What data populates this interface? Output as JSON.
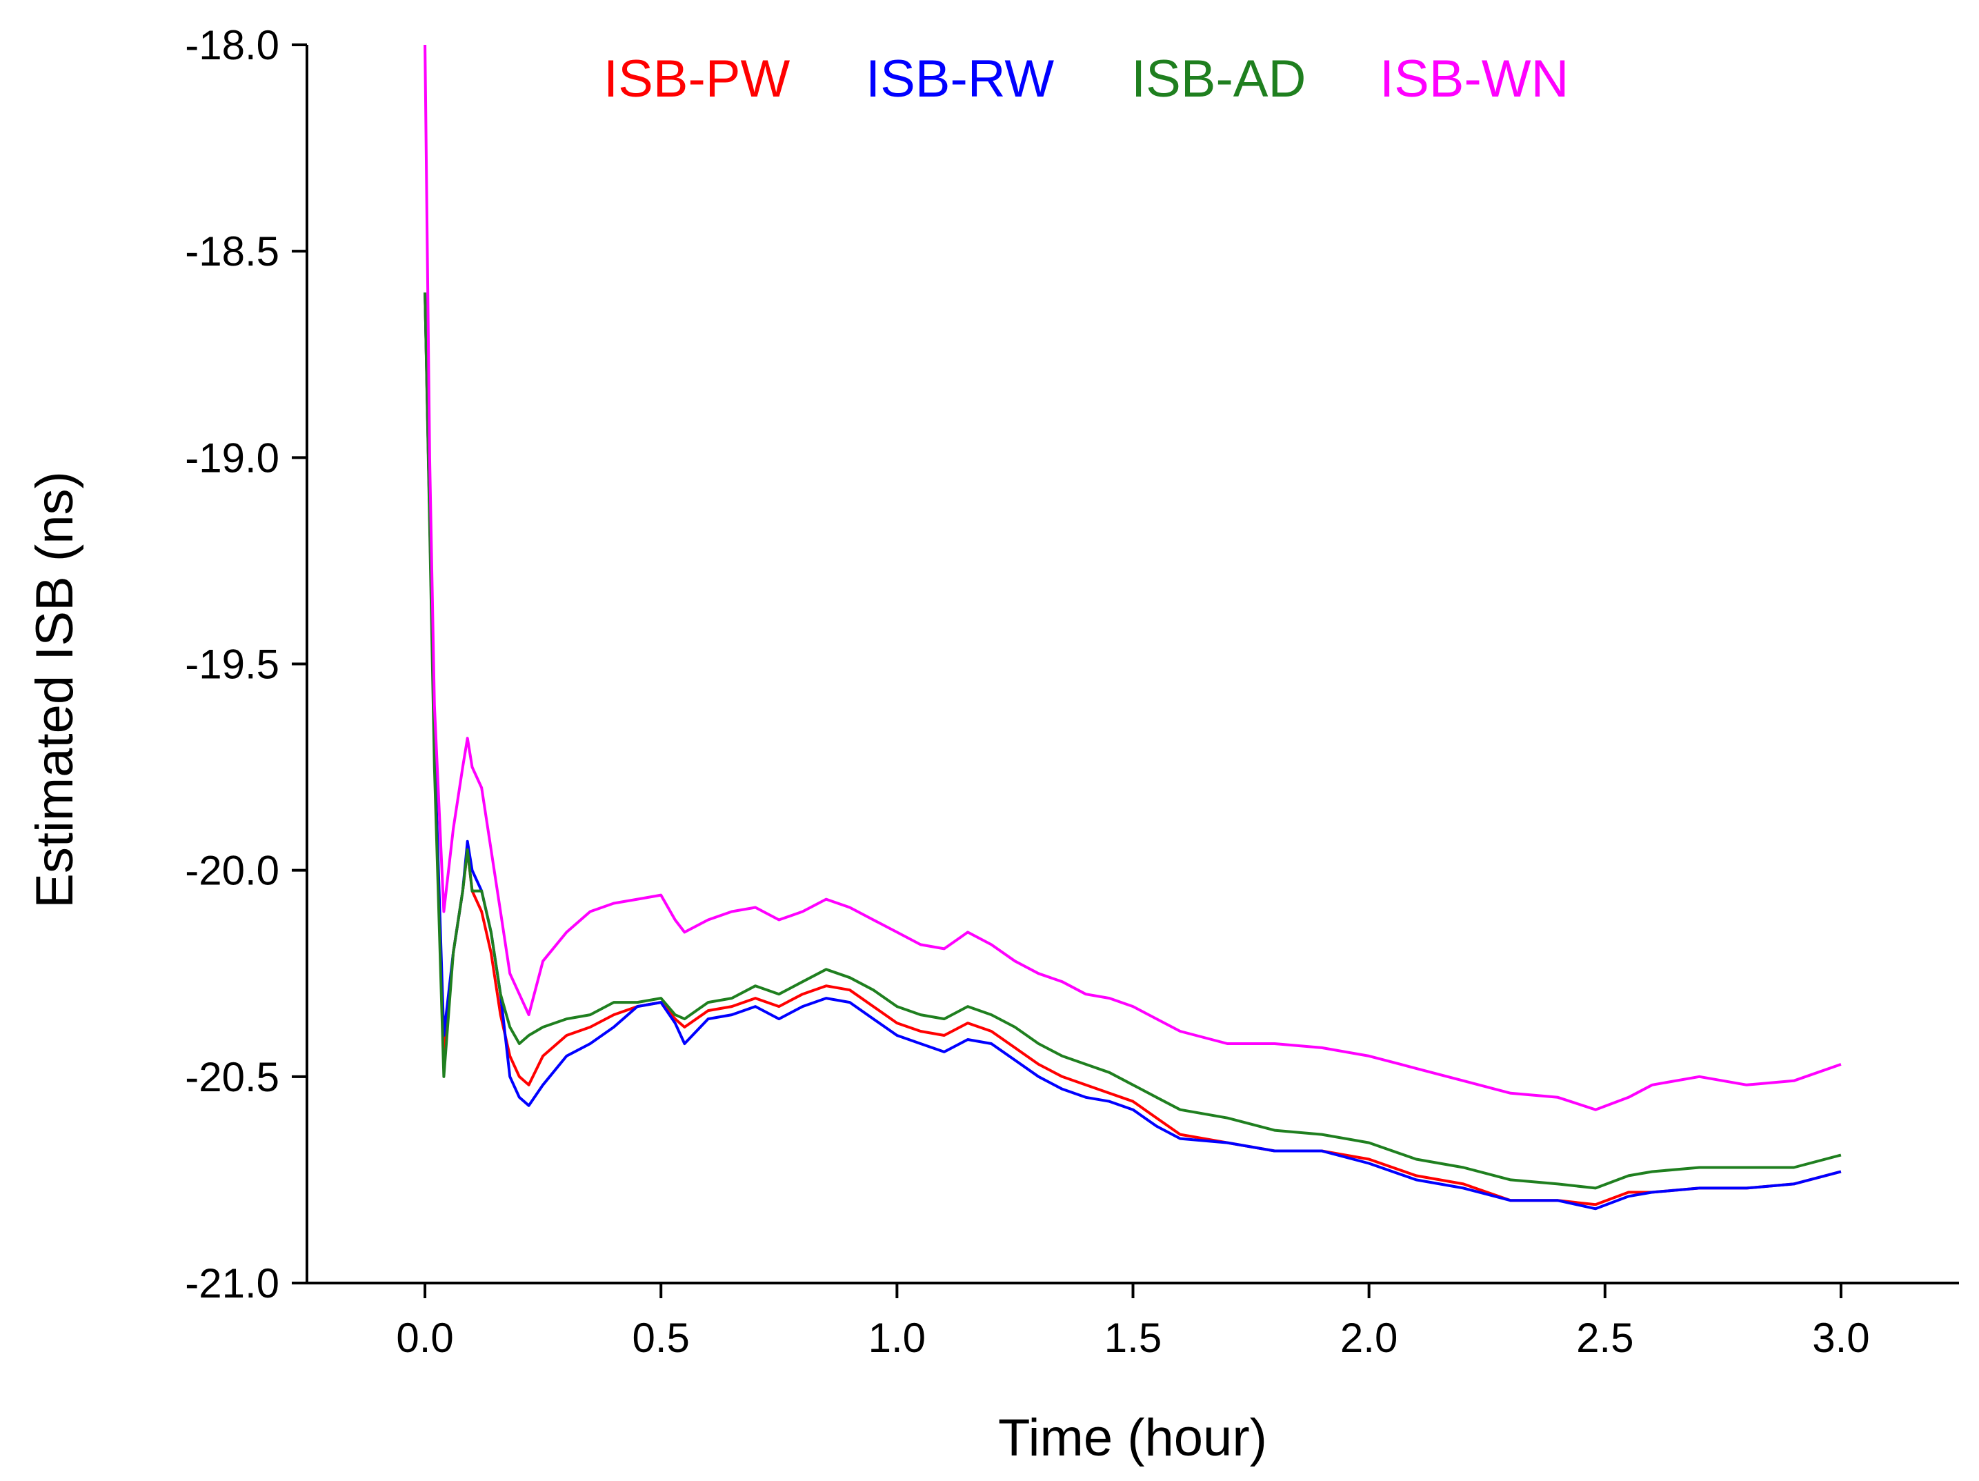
{
  "chart_data": {
    "type": "line",
    "title": "",
    "xlabel": "Time (hour)",
    "ylabel": "Estimated ISB (ns)",
    "xlim": [
      -0.25,
      3.25
    ],
    "ylim": [
      -21.0,
      -18.0
    ],
    "grid": false,
    "legend_position": "top-center",
    "x_ticks": [
      "0.0",
      "0.5",
      "1.0",
      "1.5",
      "2.0",
      "2.5",
      "3.0"
    ],
    "y_ticks": [
      "-18.0",
      "-18.5",
      "-19.0",
      "-19.5",
      "-20.0",
      "-20.5",
      "-21.0"
    ],
    "series": [
      {
        "name": "ISB-PW",
        "color": "#ff0000",
        "x": [
          0.0,
          0.02,
          0.04,
          0.06,
          0.08,
          0.09,
          0.1,
          0.12,
          0.14,
          0.16,
          0.18,
          0.2,
          0.22,
          0.25,
          0.3,
          0.35,
          0.4,
          0.45,
          0.5,
          0.53,
          0.55,
          0.6,
          0.65,
          0.7,
          0.75,
          0.8,
          0.85,
          0.9,
          0.95,
          1.0,
          1.05,
          1.1,
          1.15,
          1.2,
          1.25,
          1.3,
          1.35,
          1.4,
          1.45,
          1.5,
          1.55,
          1.6,
          1.7,
          1.8,
          1.9,
          2.0,
          2.1,
          2.2,
          2.3,
          2.4,
          2.48,
          2.55,
          2.6,
          2.7,
          2.8,
          2.9,
          3.0
        ],
        "values": [
          -18.6,
          -19.7,
          -20.45,
          -20.2,
          -20.05,
          -19.95,
          -20.05,
          -20.1,
          -20.2,
          -20.35,
          -20.45,
          -20.5,
          -20.52,
          -20.45,
          -20.4,
          -20.38,
          -20.35,
          -20.33,
          -20.32,
          -20.36,
          -20.38,
          -20.34,
          -20.33,
          -20.31,
          -20.33,
          -20.3,
          -20.28,
          -20.29,
          -20.33,
          -20.37,
          -20.39,
          -20.4,
          -20.37,
          -20.39,
          -20.43,
          -20.47,
          -20.5,
          -20.52,
          -20.54,
          -20.56,
          -20.6,
          -20.64,
          -20.66,
          -20.68,
          -20.68,
          -20.7,
          -20.74,
          -20.76,
          -20.8,
          -20.8,
          -20.81,
          -20.78,
          -20.78,
          -20.77,
          -20.77,
          -20.76,
          -20.73
        ]
      },
      {
        "name": "ISB-RW",
        "color": "#0000ff",
        "x": [
          0.0,
          0.02,
          0.04,
          0.06,
          0.08,
          0.09,
          0.1,
          0.12,
          0.14,
          0.16,
          0.18,
          0.2,
          0.22,
          0.25,
          0.3,
          0.35,
          0.4,
          0.45,
          0.5,
          0.53,
          0.55,
          0.6,
          0.65,
          0.7,
          0.75,
          0.8,
          0.85,
          0.9,
          0.95,
          1.0,
          1.05,
          1.1,
          1.15,
          1.2,
          1.25,
          1.3,
          1.35,
          1.4,
          1.45,
          1.5,
          1.55,
          1.6,
          1.7,
          1.8,
          1.9,
          2.0,
          2.1,
          2.2,
          2.3,
          2.4,
          2.48,
          2.55,
          2.6,
          2.7,
          2.8,
          2.9,
          3.0
        ],
        "values": [
          -18.6,
          -19.7,
          -20.4,
          -20.2,
          -20.05,
          -19.93,
          -20.0,
          -20.05,
          -20.15,
          -20.3,
          -20.5,
          -20.55,
          -20.57,
          -20.52,
          -20.45,
          -20.42,
          -20.38,
          -20.33,
          -20.32,
          -20.37,
          -20.42,
          -20.36,
          -20.35,
          -20.33,
          -20.36,
          -20.33,
          -20.31,
          -20.32,
          -20.36,
          -20.4,
          -20.42,
          -20.44,
          -20.41,
          -20.42,
          -20.46,
          -20.5,
          -20.53,
          -20.55,
          -20.56,
          -20.58,
          -20.62,
          -20.65,
          -20.66,
          -20.68,
          -20.68,
          -20.71,
          -20.75,
          -20.77,
          -20.8,
          -20.8,
          -20.82,
          -20.79,
          -20.78,
          -20.77,
          -20.77,
          -20.76,
          -20.73
        ]
      },
      {
        "name": "ISB-AD",
        "color": "#1f7f1f",
        "x": [
          0.0,
          0.02,
          0.04,
          0.06,
          0.08,
          0.09,
          0.1,
          0.12,
          0.14,
          0.16,
          0.18,
          0.2,
          0.22,
          0.25,
          0.3,
          0.35,
          0.4,
          0.45,
          0.5,
          0.53,
          0.55,
          0.6,
          0.65,
          0.7,
          0.75,
          0.8,
          0.85,
          0.9,
          0.95,
          1.0,
          1.05,
          1.1,
          1.15,
          1.2,
          1.25,
          1.3,
          1.35,
          1.4,
          1.45,
          1.5,
          1.55,
          1.6,
          1.7,
          1.8,
          1.9,
          2.0,
          2.1,
          2.2,
          2.3,
          2.4,
          2.48,
          2.55,
          2.6,
          2.7,
          2.8,
          2.9,
          3.0
        ],
        "values": [
          -18.6,
          -19.75,
          -20.5,
          -20.2,
          -20.05,
          -19.95,
          -20.05,
          -20.05,
          -20.15,
          -20.3,
          -20.38,
          -20.42,
          -20.4,
          -20.38,
          -20.36,
          -20.35,
          -20.32,
          -20.32,
          -20.31,
          -20.35,
          -20.36,
          -20.32,
          -20.31,
          -20.28,
          -20.3,
          -20.27,
          -20.24,
          -20.26,
          -20.29,
          -20.33,
          -20.35,
          -20.36,
          -20.33,
          -20.35,
          -20.38,
          -20.42,
          -20.45,
          -20.47,
          -20.49,
          -20.52,
          -20.55,
          -20.58,
          -20.6,
          -20.63,
          -20.64,
          -20.66,
          -20.7,
          -20.72,
          -20.75,
          -20.76,
          -20.77,
          -20.74,
          -20.73,
          -20.72,
          -20.72,
          -20.72,
          -20.69
        ]
      },
      {
        "name": "ISB-WN",
        "color": "#ff00ff",
        "x": [
          0.0,
          0.01,
          0.02,
          0.04,
          0.06,
          0.08,
          0.09,
          0.1,
          0.12,
          0.14,
          0.16,
          0.18,
          0.2,
          0.22,
          0.25,
          0.3,
          0.35,
          0.4,
          0.45,
          0.5,
          0.53,
          0.55,
          0.6,
          0.65,
          0.7,
          0.75,
          0.8,
          0.85,
          0.9,
          0.95,
          1.0,
          1.05,
          1.1,
          1.15,
          1.2,
          1.25,
          1.3,
          1.35,
          1.4,
          1.45,
          1.5,
          1.55,
          1.6,
          1.7,
          1.8,
          1.9,
          2.0,
          2.1,
          2.2,
          2.3,
          2.4,
          2.48,
          2.55,
          2.6,
          2.7,
          2.8,
          2.9,
          3.0
        ],
        "values": [
          -18.0,
          -19.0,
          -19.6,
          -20.1,
          -19.9,
          -19.75,
          -19.68,
          -19.75,
          -19.8,
          -19.95,
          -20.1,
          -20.25,
          -20.3,
          -20.35,
          -20.22,
          -20.15,
          -20.1,
          -20.08,
          -20.07,
          -20.06,
          -20.12,
          -20.15,
          -20.12,
          -20.1,
          -20.09,
          -20.12,
          -20.1,
          -20.07,
          -20.09,
          -20.12,
          -20.15,
          -20.18,
          -20.19,
          -20.15,
          -20.18,
          -20.22,
          -20.25,
          -20.27,
          -20.3,
          -20.31,
          -20.33,
          -20.36,
          -20.39,
          -20.42,
          -20.42,
          -20.43,
          -20.45,
          -20.48,
          -20.51,
          -20.54,
          -20.55,
          -20.58,
          -20.55,
          -20.52,
          -20.5,
          -20.52,
          -20.51,
          -20.47
        ]
      }
    ]
  }
}
